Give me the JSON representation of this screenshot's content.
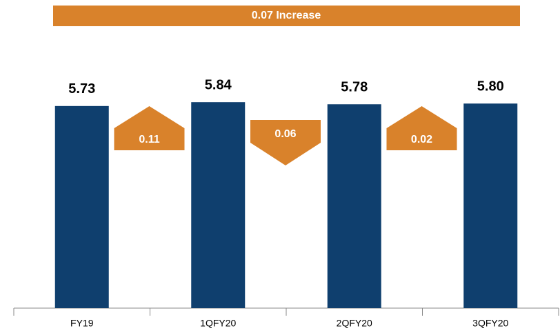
{
  "chart_data": {
    "type": "bar",
    "banner": "0.07 Increase",
    "categories": [
      "FY19",
      "1QFY20",
      "2QFY20",
      "3QFY20"
    ],
    "values": [
      5.73,
      5.84,
      5.78,
      5.8
    ],
    "value_labels": [
      "5.73",
      "5.84",
      "5.78",
      "5.80"
    ],
    "color": "#0f3f6e",
    "changes": [
      {
        "value": 0.11,
        "direction": "up"
      },
      {
        "value": 0.06,
        "direction": "down"
      },
      {
        "value": 0.02,
        "direction": "up"
      }
    ],
    "change_color": "#d9822b",
    "ylim": [
      0,
      6
    ]
  }
}
